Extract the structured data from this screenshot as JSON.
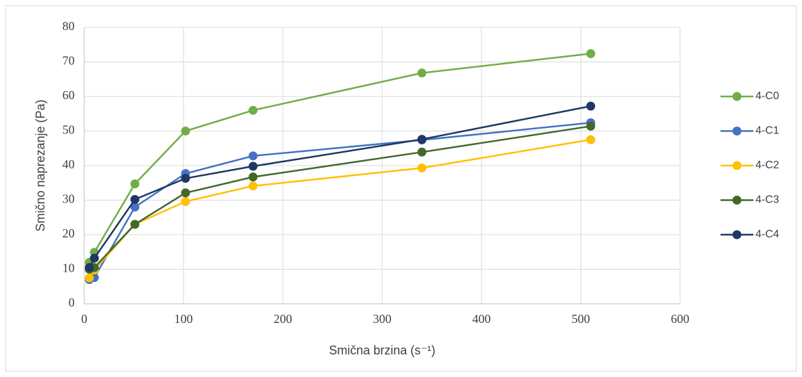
{
  "chart_data": {
    "type": "line",
    "x_label": "Smična brzina (s⁻¹)",
    "y_label": "Smično naprezanje (Pa)",
    "x": [
      5.1,
      10.2,
      51,
      102,
      170,
      340,
      510
    ],
    "series": [
      {
        "name": "4-C0",
        "color": "#70ad47",
        "values": [
          12,
          14.9,
          34.7,
          50,
          56,
          66.8,
          72.4
        ]
      },
      {
        "name": "4-C1",
        "color": "#4472c4",
        "values": [
          7,
          7.6,
          28,
          37.7,
          42.8,
          47.4,
          52.4
        ]
      },
      {
        "name": "4-C2",
        "color": "#ffc000",
        "values": [
          7.5,
          9.8,
          23,
          29.6,
          34.1,
          39.3,
          47.5
        ]
      },
      {
        "name": "4-C3",
        "color": "#43682b",
        "values": [
          10,
          10.5,
          23,
          32.1,
          36.7,
          43.9,
          51.4
        ]
      },
      {
        "name": "4-C4",
        "color": "#1f3864",
        "values": [
          10.5,
          13.2,
          30.2,
          36.3,
          39.8,
          47.6,
          57.2
        ]
      }
    ],
    "xlim": [
      0,
      600
    ],
    "xticks": [
      0,
      100,
      200,
      300,
      400,
      500,
      600
    ],
    "ylim": [
      0,
      80
    ],
    "yticks": [
      0,
      10,
      20,
      30,
      40,
      50,
      60,
      70,
      80
    ],
    "grid": true,
    "legend": "right"
  }
}
